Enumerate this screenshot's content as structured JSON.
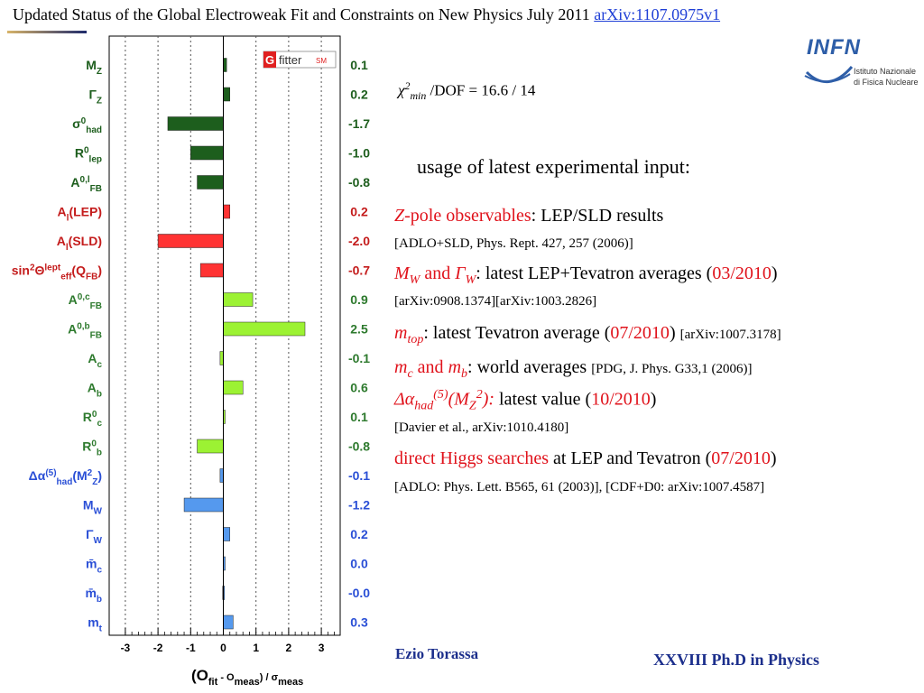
{
  "title": {
    "text": "Updated Status of the Global Electroweak Fit and Constraints on New Physics July 2011",
    "link": "arXiv:1107.0975v1"
  },
  "logo": {
    "brand": "INFN",
    "line1": "Istituto Nazionale",
    "line2": "di Fisica Nucleare"
  },
  "gfitter": {
    "g": "G",
    "fitter": "fitter",
    "tag": "SM"
  },
  "chi2": {
    "prefix": "χ",
    "sup": "2",
    "sub": "min",
    "text": "/DOF = 16.6 / 14"
  },
  "usage": "usage of latest experimental input:",
  "inputs": {
    "z_pole": {
      "label_i": "Z",
      "label_red": "-pole observables",
      "text": ": LEP/SLD results",
      "ref": "[ADLO+SLD, Phys. Rept. 427, 257 (2006)]"
    },
    "mw": {
      "m": "M",
      "msub": "W",
      "and": "and",
      "g": "Γ",
      "gsub": "W",
      "text": ": latest LEP+Tevatron averages (",
      "date": "03/2010",
      "close": ")",
      "ref": "[arXiv:0908.1374][arXiv:1003.2826]"
    },
    "mtop": {
      "m": "m",
      "msub": "top",
      "text": ": latest Tevatron average (",
      "date": "07/2010",
      "close": ")",
      "ref": "[arXiv:1007.3178]"
    },
    "mcmb": {
      "m1": "m",
      "s1": "c",
      "and": "and",
      "m2": "m",
      "s2": "b",
      "text": ": world averages",
      "ref": "[PDG, J. Phys. G33,1 (2006)]"
    },
    "alpha": {
      "d": "Δα",
      "sub": "had",
      "sup": "(5)",
      "paren": "(M",
      "zsub": "Z",
      "zsup": "2",
      "close": "):",
      "text": " latest value (",
      "date": "10/2010",
      "close2": ")",
      "ref": "[Davier et al., arXiv:1010.4180]"
    },
    "higgs": {
      "red": "direct Higgs searches",
      "text": " at LEP and Tevatron (",
      "date": "07/2010",
      "close": ")",
      "ref": "[ADLO: Phys. Lett. B565, 61 (2003)], [CDF+D0: arXiv:1007.4587]"
    }
  },
  "author": "Ezio Torassa",
  "footer": "XXVIII  Ph.D in Physics",
  "chart_data": {
    "type": "bar",
    "orientation": "horizontal",
    "xlabel": "(O_fit - O_meas) / σ_meas",
    "xlim": [
      -3.3,
      3.5
    ],
    "xticks": [
      "-3",
      "-2",
      "-1",
      "0",
      "1",
      "2",
      "3"
    ],
    "grid": "dotted vertical lines at integer values",
    "categories": [
      {
        "label": "M_Z",
        "value": 0.1,
        "value_label": "0.1",
        "group": "dark-green"
      },
      {
        "label": "Γ_Z",
        "value": 0.2,
        "value_label": "0.2",
        "group": "dark-green"
      },
      {
        "label": "σ⁰_had",
        "value": -1.7,
        "value_label": "-1.7",
        "group": "dark-green"
      },
      {
        "label": "R⁰_lep",
        "value": -1.0,
        "value_label": "-1.0",
        "group": "dark-green"
      },
      {
        "label": "A^{0,l}_FB",
        "value": -0.8,
        "value_label": "-0.8",
        "group": "dark-green"
      },
      {
        "label": "A_l(LEP)",
        "value": 0.2,
        "value_label": "0.2",
        "group": "red"
      },
      {
        "label": "A_l(SLD)",
        "value": -2.0,
        "value_label": "-2.0",
        "group": "red"
      },
      {
        "label": "sin²Θ^lept_eff(Q_FB)",
        "value": -0.7,
        "value_label": "-0.7",
        "group": "red"
      },
      {
        "label": "A^{0,c}_FB",
        "value": 0.9,
        "value_label": "0.9",
        "group": "light-green"
      },
      {
        "label": "A^{0,b}_FB",
        "value": 2.5,
        "value_label": "2.5",
        "group": "light-green"
      },
      {
        "label": "A_c",
        "value": -0.1,
        "value_label": "-0.1",
        "group": "light-green"
      },
      {
        "label": "A_b",
        "value": 0.6,
        "value_label": "0.6",
        "group": "light-green"
      },
      {
        "label": "R⁰_c",
        "value": 0.05,
        "value_label": "0.1",
        "group": "light-green"
      },
      {
        "label": "R⁰_b",
        "value": -0.8,
        "value_label": "-0.8",
        "group": "light-green"
      },
      {
        "label": "Δα^(5)_had(M²_Z)",
        "value": -0.1,
        "value_label": "-0.1",
        "group": "blue"
      },
      {
        "label": "M_W",
        "value": -1.2,
        "value_label": "-1.2",
        "group": "blue"
      },
      {
        "label": "Γ_W",
        "value": 0.2,
        "value_label": "0.2",
        "group": "blue"
      },
      {
        "label": "m̄_c",
        "value": 0.0,
        "value_label": "0.0",
        "group": "blue"
      },
      {
        "label": "m̄_b",
        "value": -0.02,
        "value_label": "-0.0",
        "group": "blue"
      },
      {
        "label": "m_t",
        "value": 0.3,
        "value_label": "0.3",
        "group": "blue"
      }
    ],
    "colors": {
      "dark-green": {
        "fill": "#1d5e1d",
        "label": "#1d5e1d"
      },
      "red": {
        "fill": "#ff3333",
        "label": "#c41c1c"
      },
      "light-green": {
        "fill": "#9cf233",
        "label": "#2e7a2e"
      },
      "blue": {
        "fill": "#5599ee",
        "label": "#2a4fd6"
      }
    }
  }
}
